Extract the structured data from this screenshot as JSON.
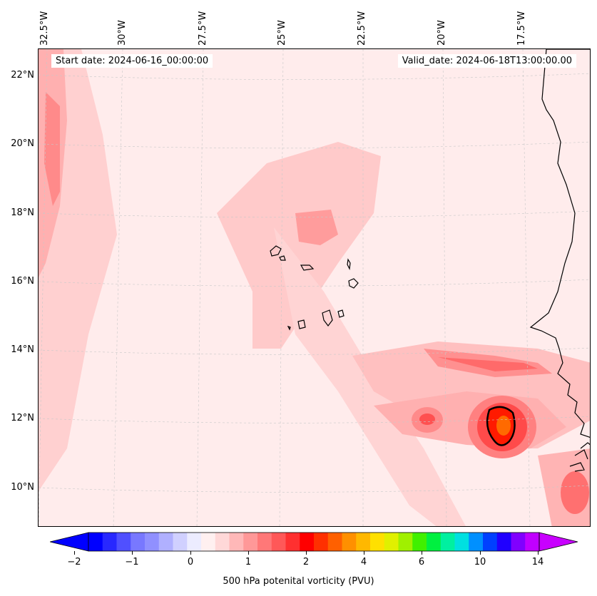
{
  "header": {
    "start_date": "Start date: 2024-06-16_00:00:00",
    "valid_date": "Valid_date: 2024-06-18T13:00:00.00"
  },
  "longitude_labels": [
    "32.5°W",
    "30°W",
    "27.5°W",
    "25°W",
    "22.5°W",
    "20°W",
    "17.5°W"
  ],
  "latitude_labels": [
    "22°N",
    "20°N",
    "18°N",
    "16°N",
    "14°N",
    "12°N",
    "10°N"
  ],
  "colorbar": {
    "label": "500 hPa potenital vorticity (PVU)",
    "ticks": [
      "−2",
      "−1",
      "0",
      "1",
      "2",
      "4",
      "6",
      "10",
      "14"
    ],
    "colors": [
      "#0000ff",
      "#2828ff",
      "#5050ff",
      "#7878ff",
      "#9090ff",
      "#b0b0ff",
      "#d0d0ff",
      "#ececff",
      "#fff0f0",
      "#ffd8d8",
      "#ffb8b8",
      "#ff9898",
      "#ff7878",
      "#ff5858",
      "#ff3030",
      "#ff0000",
      "#ff3000",
      "#ff6000",
      "#ff9000",
      "#ffb800",
      "#ffe000",
      "#e0f000",
      "#a0f000",
      "#40f000",
      "#00f040",
      "#00f0a0",
      "#00e0e0",
      "#0090ff",
      "#0040ff",
      "#2000ff",
      "#8000ff",
      "#c000ff"
    ],
    "under_color": "#0000ff",
    "over_color": "#c800ff"
  }
}
